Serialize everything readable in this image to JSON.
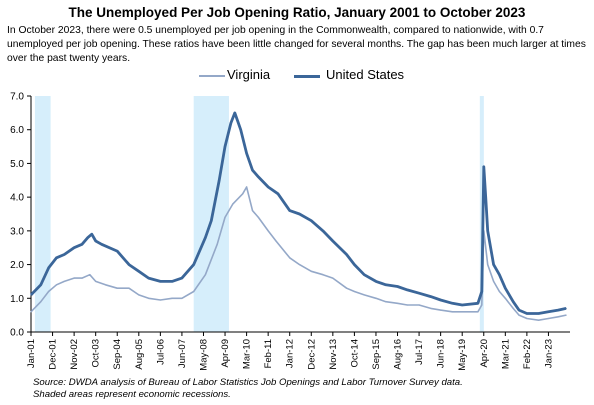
{
  "chart_data": {
    "type": "line",
    "title": "The Unemployed Per Job Opening Ratio, January 2001 to October 2023",
    "subtitle": "In October 2023, there were 0.5 unemployed per job opening in the Commonwealth, compared to nationwide, with 0.7 unemployed per job opening. These ratios have been little changed for several months. The gap has been much larger at times over the past twenty years.",
    "x_labels": [
      "Jan-01",
      "Dec-01",
      "Nov-02",
      "Oct-03",
      "Sep-04",
      "Aug-05",
      "Jul-06",
      "Jun-07",
      "May-08",
      "Apr-09",
      "Mar-10",
      "Feb-11",
      "Jan-12",
      "Dec-12",
      "Nov-13",
      "Oct-14",
      "Sep-15",
      "Aug-16",
      "Jul-17",
      "Jun-18",
      "May-19",
      "Apr-20",
      "Mar-21",
      "Feb-22",
      "Jan-23"
    ],
    "y_ticks": [
      "0.0",
      "1.0",
      "2.0",
      "3.0",
      "4.0",
      "5.0",
      "6.0",
      "7.0"
    ],
    "ylim": [
      0,
      7
    ],
    "recessions": [
      [
        "Mar-01",
        "Nov-01"
      ],
      [
        "Dec-07",
        "Jun-09"
      ],
      [
        "Feb-20",
        "Apr-20"
      ]
    ],
    "series": [
      {
        "name": "Virginia",
        "color": "#94A8C8",
        "points": [
          [
            "Jan-01",
            0.6
          ],
          [
            "Jun-01",
            0.9
          ],
          [
            "Oct-01",
            1.2
          ],
          [
            "Feb-02",
            1.4
          ],
          [
            "Jun-02",
            1.5
          ],
          [
            "Nov-02",
            1.6
          ],
          [
            "Mar-03",
            1.6
          ],
          [
            "Jul-03",
            1.7
          ],
          [
            "Oct-03",
            1.5
          ],
          [
            "Mar-04",
            1.4
          ],
          [
            "Sep-04",
            1.3
          ],
          [
            "Mar-05",
            1.3
          ],
          [
            "Aug-05",
            1.1
          ],
          [
            "Jan-06",
            1.0
          ],
          [
            "Jul-06",
            0.95
          ],
          [
            "Jan-07",
            1.0
          ],
          [
            "Jun-07",
            1.0
          ],
          [
            "Dec-07",
            1.2
          ],
          [
            "Jun-08",
            1.7
          ],
          [
            "Dec-08",
            2.6
          ],
          [
            "Apr-09",
            3.4
          ],
          [
            "Aug-09",
            3.8
          ],
          [
            "Jan-10",
            4.1
          ],
          [
            "Mar-10",
            4.3
          ],
          [
            "Jun-10",
            3.6
          ],
          [
            "Sep-10",
            3.4
          ],
          [
            "Feb-11",
            3.0
          ],
          [
            "Jun-11",
            2.7
          ],
          [
            "Jan-12",
            2.2
          ],
          [
            "Jun-12",
            2.0
          ],
          [
            "Dec-12",
            1.8
          ],
          [
            "Jun-13",
            1.7
          ],
          [
            "Nov-13",
            1.6
          ],
          [
            "Jun-14",
            1.3
          ],
          [
            "Oct-14",
            1.2
          ],
          [
            "Mar-15",
            1.1
          ],
          [
            "Sep-15",
            1.0
          ],
          [
            "Feb-16",
            0.9
          ],
          [
            "Aug-16",
            0.85
          ],
          [
            "Jan-17",
            0.8
          ],
          [
            "Jul-17",
            0.8
          ],
          [
            "Jan-18",
            0.7
          ],
          [
            "Jun-18",
            0.65
          ],
          [
            "Dec-18",
            0.6
          ],
          [
            "May-19",
            0.6
          ],
          [
            "Jan-20",
            0.6
          ],
          [
            "Mar-20",
            0.8
          ],
          [
            "Apr-20",
            3.0
          ],
          [
            "Jun-20",
            2.0
          ],
          [
            "Sep-20",
            1.5
          ],
          [
            "Dec-20",
            1.2
          ],
          [
            "Mar-21",
            1.0
          ],
          [
            "Jul-21",
            0.7
          ],
          [
            "Oct-21",
            0.5
          ],
          [
            "Feb-22",
            0.4
          ],
          [
            "Aug-22",
            0.35
          ],
          [
            "Jan-23",
            0.4
          ],
          [
            "Jun-23",
            0.45
          ],
          [
            "Oct-23",
            0.5
          ]
        ]
      },
      {
        "name": "United States",
        "color": "#3B6699",
        "points": [
          [
            "Jan-01",
            1.1
          ],
          [
            "Jun-01",
            1.4
          ],
          [
            "Oct-01",
            1.9
          ],
          [
            "Feb-02",
            2.2
          ],
          [
            "Jun-02",
            2.3
          ],
          [
            "Nov-02",
            2.5
          ],
          [
            "Mar-03",
            2.6
          ],
          [
            "Jun-03",
            2.8
          ],
          [
            "Aug-03",
            2.9
          ],
          [
            "Oct-03",
            2.7
          ],
          [
            "Jan-04",
            2.6
          ],
          [
            "Sep-04",
            2.4
          ],
          [
            "Mar-05",
            2.0
          ],
          [
            "Aug-05",
            1.8
          ],
          [
            "Jan-06",
            1.6
          ],
          [
            "Jul-06",
            1.5
          ],
          [
            "Jan-07",
            1.5
          ],
          [
            "Jun-07",
            1.6
          ],
          [
            "Dec-07",
            2.0
          ],
          [
            "Jun-08",
            2.8
          ],
          [
            "Sep-08",
            3.3
          ],
          [
            "Jan-09",
            4.5
          ],
          [
            "Apr-09",
            5.5
          ],
          [
            "Jul-09",
            6.2
          ],
          [
            "Sep-09",
            6.5
          ],
          [
            "Dec-09",
            6.0
          ],
          [
            "Mar-10",
            5.3
          ],
          [
            "Jun-10",
            4.8
          ],
          [
            "Sep-10",
            4.6
          ],
          [
            "Feb-11",
            4.3
          ],
          [
            "Jul-11",
            4.1
          ],
          [
            "Jan-12",
            3.6
          ],
          [
            "Jun-12",
            3.5
          ],
          [
            "Dec-12",
            3.3
          ],
          [
            "Jun-13",
            3.0
          ],
          [
            "Nov-13",
            2.7
          ],
          [
            "Jun-14",
            2.3
          ],
          [
            "Oct-14",
            2.0
          ],
          [
            "Mar-15",
            1.7
          ],
          [
            "Sep-15",
            1.5
          ],
          [
            "Feb-16",
            1.4
          ],
          [
            "Aug-16",
            1.35
          ],
          [
            "Jan-17",
            1.25
          ],
          [
            "Jul-17",
            1.15
          ],
          [
            "Jan-18",
            1.05
          ],
          [
            "Jun-18",
            0.95
          ],
          [
            "Dec-18",
            0.85
          ],
          [
            "May-19",
            0.8
          ],
          [
            "Jan-20",
            0.85
          ],
          [
            "Mar-20",
            1.2
          ],
          [
            "Apr-20",
            4.9
          ],
          [
            "May-20",
            4.0
          ],
          [
            "Jun-20",
            3.0
          ],
          [
            "Sep-20",
            2.0
          ],
          [
            "Dec-20",
            1.7
          ],
          [
            "Mar-21",
            1.3
          ],
          [
            "Jul-21",
            0.9
          ],
          [
            "Oct-21",
            0.65
          ],
          [
            "Feb-22",
            0.55
          ],
          [
            "Aug-22",
            0.55
          ],
          [
            "Jan-23",
            0.6
          ],
          [
            "Jun-23",
            0.65
          ],
          [
            "Oct-23",
            0.7
          ]
        ]
      }
    ]
  },
  "legend": [
    {
      "label": "Virginia",
      "color": "#94A8C8"
    },
    {
      "label": "United States",
      "color": "#3B6699"
    }
  ],
  "footer": {
    "source": "Source: DWDA analysis of Bureau of Labor Statistics Job Openings and Labor Turnover Survey data.",
    "note": "Shaded areas represent economic recessions."
  },
  "colors": {
    "recession": "#D6EEFB",
    "axis": "#000000"
  }
}
